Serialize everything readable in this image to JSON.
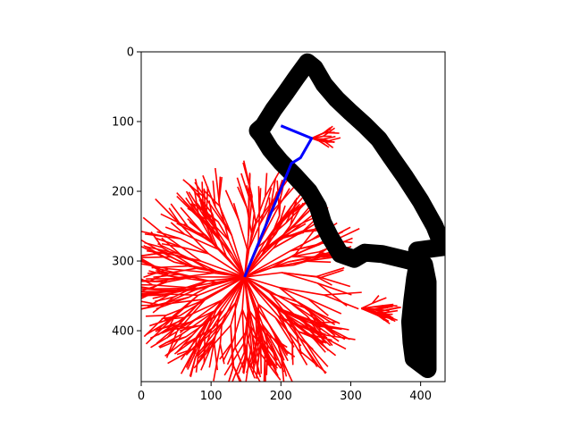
{
  "chart_data": {
    "type": "scatter",
    "title": "",
    "xlabel": "",
    "ylabel": "",
    "xlim": [
      0,
      435
    ],
    "ylim": [
      473,
      0
    ],
    "grid": false,
    "x_ticks": [
      0,
      100,
      200,
      300,
      400
    ],
    "y_ticks": [
      0,
      100,
      200,
      300,
      400
    ],
    "colors": {
      "tree": "#ff0000",
      "path": "#0000ff",
      "obstacle": "#000000"
    },
    "obstacle_outline": [
      [
        410,
        455
      ],
      [
        390,
        440
      ],
      [
        387,
        417
      ],
      [
        385,
        387
      ],
      [
        388,
        357
      ],
      [
        392,
        325
      ],
      [
        396,
        303
      ],
      [
        395,
        285
      ],
      [
        432,
        280
      ],
      [
        420,
        250
      ],
      [
        400,
        214
      ],
      [
        378,
        180
      ],
      [
        357,
        150
      ],
      [
        340,
        125
      ],
      [
        320,
        105
      ],
      [
        300,
        87
      ],
      [
        280,
        68
      ],
      [
        262,
        47
      ],
      [
        248,
        23
      ],
      [
        238,
        15
      ],
      [
        222,
        37
      ],
      [
        206,
        60
      ],
      [
        190,
        82
      ],
      [
        175,
        106
      ],
      [
        167,
        113
      ],
      [
        172,
        119
      ],
      [
        185,
        140
      ],
      [
        200,
        158
      ],
      [
        220,
        178
      ],
      [
        240,
        200
      ],
      [
        253,
        222
      ],
      [
        260,
        245
      ],
      [
        270,
        265
      ],
      [
        285,
        290
      ],
      [
        305,
        297
      ],
      [
        320,
        288
      ],
      [
        345,
        290
      ],
      [
        378,
        298
      ],
      [
        405,
        305
      ],
      [
        410,
        330
      ],
      [
        410,
        360
      ],
      [
        410,
        400
      ],
      [
        410,
        432
      ],
      [
        410,
        455
      ]
    ],
    "root": [
      148,
      323
    ],
    "tree_roots": [
      [
        148,
        323
      ],
      [
        315,
        368
      ],
      [
        244,
        124
      ]
    ],
    "path": [
      [
        148,
        323
      ],
      [
        215,
        160
      ],
      [
        228,
        152
      ],
      [
        244,
        124
      ],
      [
        200,
        106
      ]
    ]
  }
}
